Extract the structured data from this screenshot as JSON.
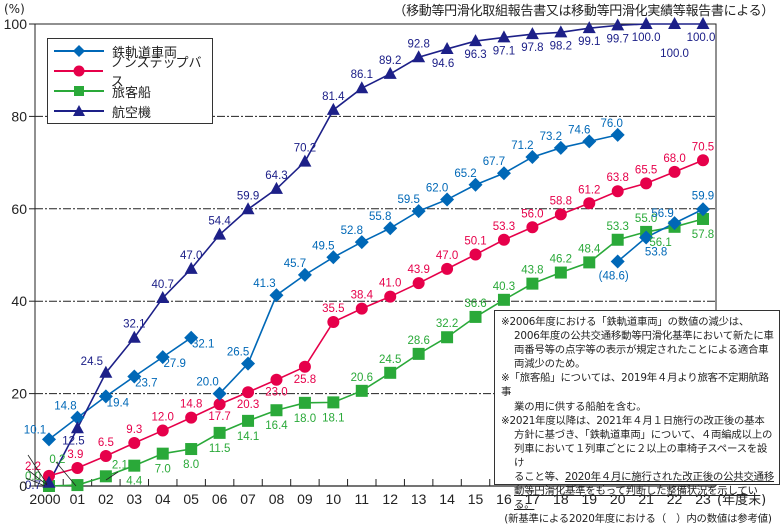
{
  "source_note": "（移動等円滑化取組報告書又は移動等円滑化実績等報告書による）",
  "unit_label": "(%)",
  "chart_data": {
    "type": "line",
    "title": "",
    "xlabel": "(年度末)",
    "ylabel": "(%)",
    "ylim": [
      0,
      100
    ],
    "yticks": [
      0,
      20,
      40,
      60,
      80,
      100
    ],
    "grid": "horizontal dash-dot at 20,40,60,80",
    "legend_position": "top-left",
    "categories": [
      "2000",
      "01",
      "02",
      "03",
      "04",
      "05",
      "06",
      "07",
      "08",
      "09",
      "10",
      "11",
      "12",
      "13",
      "14",
      "15",
      "16",
      "17",
      "18",
      "19",
      "20",
      "21",
      "22",
      "23"
    ],
    "series": [
      {
        "name": "鉄軌道車両",
        "color": "#0068b7",
        "marker": "diamond",
        "segments": [
          {
            "x_index": [
              0,
              1,
              2,
              3,
              4,
              5
            ],
            "values": [
              10.1,
              14.8,
              19.4,
              23.7,
              27.9,
              32.1
            ]
          },
          {
            "x_index": [
              6,
              7,
              8,
              9,
              10,
              11,
              12,
              13,
              14,
              15,
              16,
              17,
              18,
              19,
              20
            ],
            "values": [
              20.0,
              26.5,
              41.3,
              45.7,
              49.5,
              52.8,
              55.8,
              59.5,
              62.0,
              65.2,
              67.7,
              71.2,
              73.2,
              74.6,
              76.0
            ]
          },
          {
            "x_index": [
              20,
              21,
              22,
              23
            ],
            "values": [
              48.6,
              53.8,
              56.9,
              59.9
            ]
          }
        ],
        "labels": [
          "10.1",
          "14.8",
          "19.4",
          "23.7",
          "27.9",
          "32.1",
          "20.0",
          "26.5",
          "41.3",
          "45.7",
          "49.5",
          "52.8",
          "55.8",
          "59.5",
          "62.0",
          "65.2",
          "67.7",
          "71.2",
          "73.2",
          "74.6",
          "76.0",
          "(48.6)",
          "53.8",
          "56.9",
          "59.9"
        ]
      },
      {
        "name": "ノンステップバス",
        "color": "#e6004a",
        "marker": "circle",
        "values": [
          2.2,
          3.9,
          6.5,
          9.3,
          12.0,
          14.8,
          17.7,
          20.3,
          23.0,
          25.8,
          35.5,
          38.4,
          41.0,
          43.9,
          47.0,
          50.1,
          53.3,
          56.0,
          58.8,
          61.2,
          63.8,
          65.5,
          68.0,
          70.5
        ]
      },
      {
        "name": "旅客船",
        "color": "#2aa939",
        "marker": "square",
        "values": [
          0.0,
          0.2,
          2.1,
          4.4,
          7.0,
          8.0,
          11.5,
          14.1,
          16.4,
          18.0,
          18.1,
          20.6,
          24.5,
          28.6,
          32.2,
          36.6,
          40.3,
          43.8,
          46.2,
          48.4,
          53.3,
          55.0,
          56.1,
          57.8
        ]
      },
      {
        "name": "航空機",
        "color": "#1d2088",
        "marker": "triangle",
        "values": [
          0.7,
          12.5,
          24.5,
          32.1,
          40.7,
          47.0,
          54.4,
          59.9,
          64.3,
          70.2,
          81.4,
          86.1,
          89.2,
          92.8,
          94.6,
          96.3,
          97.1,
          97.8,
          98.2,
          99.1,
          99.7,
          100.0,
          100.0,
          100.0
        ]
      }
    ]
  },
  "notes": {
    "n1_line1": "※2006年度における「鉄軌道車両」の数値の減少は、",
    "n1_line2": "2006年度の公共交通移動等円滑化基準において新たに車",
    "n1_line3": "両番号等の点字等の表示が規定されたことによる適合車",
    "n1_line4": "両減少のため。",
    "n2_line1": "※「旅客船」については、2019年４月より旅客不定期航路事",
    "n2_line2": "業の用に供する船舶を含む。",
    "n3_line1": "※2021年度以降は、2021年４月１日施行の改正後の基本",
    "n3_line2": "方針に基づき、「鉄軌道車両」について、４両編成以上の",
    "n3_line3": "列車において１列車ごとに２以上の車椅子スペースを設け",
    "n3_line4a": "ること等、",
    "n3_line4b": "2020年４月に施行された改正後の公共交通移",
    "n3_line5": "動等円滑化基準をもって判断した整備状況を示している。",
    "n3_line6": "(新基準による2020年度における（　）内の数値は参考値)"
  }
}
